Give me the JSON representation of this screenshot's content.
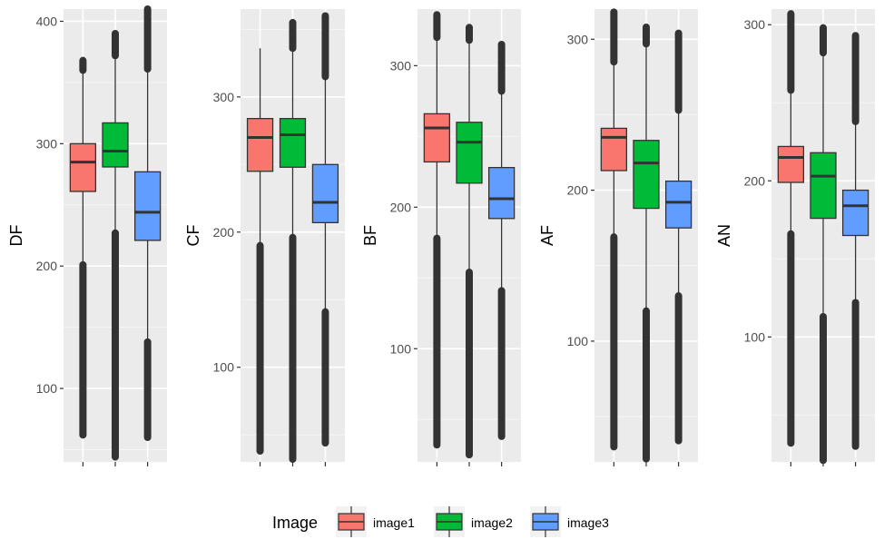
{
  "legend": {
    "title": "Image",
    "position": "bottom",
    "items": [
      {
        "label": "image1",
        "color": "#F8766D"
      },
      {
        "label": "image2",
        "color": "#00BA38"
      },
      {
        "label": "image3",
        "color": "#619CFF"
      }
    ]
  },
  "chart_data": [
    {
      "type": "boxplot",
      "ylabel": "DF",
      "ylim": [
        40,
        410
      ],
      "yticks": [
        100,
        200,
        300,
        400
      ],
      "grid": true,
      "series": [
        {
          "name": "image1",
          "q1": 261,
          "median": 285,
          "q3": 300,
          "whisker_low": 201,
          "whisker_high": 358,
          "outlier_ranges": [
            [
              62,
              201
            ],
            [
              360,
              368
            ]
          ]
        },
        {
          "name": "image2",
          "q1": 281,
          "median": 294,
          "q3": 317,
          "whisker_low": 227,
          "whisker_high": 371,
          "outlier_ranges": [
            [
              44,
              227
            ],
            [
              372,
              390
            ]
          ]
        },
        {
          "name": "image3",
          "q1": 221,
          "median": 244,
          "q3": 277,
          "whisker_low": 138,
          "whisker_high": 360,
          "outlier_ranges": [
            [
              60,
              138
            ],
            [
              361,
              410
            ]
          ]
        }
      ]
    },
    {
      "type": "boxplot",
      "ylabel": "CF",
      "ylim": [
        30,
        365
      ],
      "yticks": [
        100,
        200,
        300
      ],
      "grid": true,
      "series": [
        {
          "name": "image1",
          "q1": 245,
          "median": 270,
          "q3": 284,
          "whisker_low": 190,
          "whisker_high": 336,
          "outlier_ranges": [
            [
              38,
              190
            ]
          ]
        },
        {
          "name": "image2",
          "q1": 248,
          "median": 272,
          "q3": 284,
          "whisker_low": 196,
          "whisker_high": 334,
          "outlier_ranges": [
            [
              32,
              196
            ],
            [
              336,
              355
            ]
          ]
        },
        {
          "name": "image3",
          "q1": 207,
          "median": 222,
          "q3": 250,
          "whisker_low": 141,
          "whisker_high": 313,
          "outlier_ranges": [
            [
              44,
              141
            ],
            [
              315,
              360
            ]
          ]
        }
      ]
    },
    {
      "type": "boxplot",
      "ylabel": "BF",
      "ylim": [
        20,
        340
      ],
      "yticks": [
        100,
        200,
        300
      ],
      "grid": true,
      "series": [
        {
          "name": "image1",
          "q1": 232,
          "median": 256,
          "q3": 266,
          "whisker_low": 178,
          "whisker_high": 318,
          "outlier_ranges": [
            [
              32,
              178
            ],
            [
              320,
              336
            ]
          ]
        },
        {
          "name": "image2",
          "q1": 217,
          "median": 246,
          "q3": 260,
          "whisker_low": 154,
          "whisker_high": 316,
          "outlier_ranges": [
            [
              25,
              154
            ],
            [
              318,
              327
            ]
          ]
        },
        {
          "name": "image3",
          "q1": 192,
          "median": 206,
          "q3": 228,
          "whisker_low": 141,
          "whisker_high": 280,
          "outlier_ranges": [
            [
              38,
              141
            ],
            [
              282,
              315
            ]
          ]
        }
      ]
    },
    {
      "type": "boxplot",
      "ylabel": "AF",
      "ylim": [
        20,
        320
      ],
      "yticks": [
        100,
        200,
        300
      ],
      "grid": true,
      "series": [
        {
          "name": "image1",
          "q1": 213,
          "median": 235,
          "q3": 241,
          "whisker_low": 169,
          "whisker_high": 283,
          "outlier_ranges": [
            [
              30,
              169
            ],
            [
              285,
              318
            ]
          ]
        },
        {
          "name": "image2",
          "q1": 188,
          "median": 218,
          "q3": 233,
          "whisker_low": 120,
          "whisker_high": 295,
          "outlier_ranges": [
            [
              22,
              120
            ],
            [
              297,
              308
            ]
          ]
        },
        {
          "name": "image3",
          "q1": 175,
          "median": 192,
          "q3": 206,
          "whisker_low": 130,
          "whisker_high": 251,
          "outlier_ranges": [
            [
              34,
              130
            ],
            [
              253,
              304
            ]
          ]
        }
      ]
    },
    {
      "type": "boxplot",
      "ylabel": "AN",
      "ylim": [
        20,
        310
      ],
      "yticks": [
        100,
        200,
        300
      ],
      "grid": true,
      "series": [
        {
          "name": "image1",
          "q1": 199,
          "median": 215,
          "q3": 222,
          "whisker_low": 166,
          "whisker_high": 256,
          "outlier_ranges": [
            [
              32,
              166
            ],
            [
              258,
              307
            ]
          ]
        },
        {
          "name": "image2",
          "q1": 176,
          "median": 203,
          "q3": 218,
          "whisker_low": 113,
          "whisker_high": 280,
          "outlier_ranges": [
            [
              21,
              113
            ],
            [
              282,
              298
            ]
          ]
        },
        {
          "name": "image3",
          "q1": 165,
          "median": 184,
          "q3": 194,
          "whisker_low": 122,
          "whisker_high": 236,
          "outlier_ranges": [
            [
              30,
              122
            ],
            [
              238,
              293
            ]
          ]
        }
      ]
    }
  ]
}
